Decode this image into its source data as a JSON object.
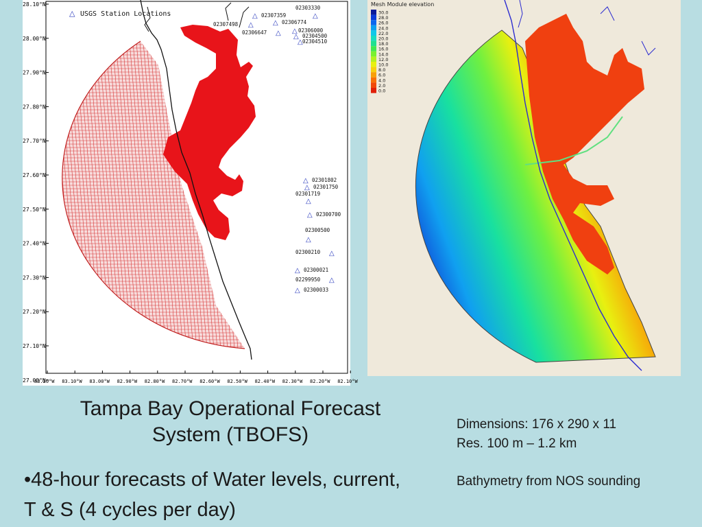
{
  "left_figure": {
    "legend_label": "USGS Station Locations",
    "y_ticks": [
      "28.10°N",
      "28.00°N",
      "27.90°N",
      "27.80°N",
      "27.70°N",
      "27.60°N",
      "27.50°N",
      "27.40°N",
      "27.30°N",
      "27.20°N",
      "27.10°N",
      "27.00°N"
    ],
    "x_ticks": [
      "83.20°W",
      "83.10°W",
      "83.00°W",
      "82.90°W",
      "82.80°W",
      "82.70°W",
      "82.60°W",
      "82.50°W",
      "82.40°W",
      "82.30°W",
      "82.20°W",
      "82.10°W"
    ],
    "stations": [
      "02303330",
      "02307359",
      "02306774",
      "02307498",
      "02306647",
      "02306000",
      "02304500",
      "02304510",
      "02301802",
      "02301750",
      "02301719",
      "02300700",
      "02300500",
      "02300210",
      "02300021",
      "02299950",
      "02300033"
    ]
  },
  "right_figure": {
    "legend_title": "Mesh Module elevation",
    "legend_values": [
      "30.0",
      "28.0",
      "26.0",
      "24.0",
      "22.0",
      "20.0",
      "18.0",
      "16.0",
      "14.0",
      "12.0",
      "10.0",
      "8.0",
      "6.0",
      "4.0",
      "2.0",
      "0.0"
    ],
    "legend_colors": [
      "#0a1a9a",
      "#0a3ad8",
      "#0a66ee",
      "#0aa0f0",
      "#10c8e8",
      "#18dcc0",
      "#20e090",
      "#40e850",
      "#7af030",
      "#b4f020",
      "#e8f010",
      "#f8d010",
      "#f8a008",
      "#f87008",
      "#f04808",
      "#e02008"
    ]
  },
  "title": "Tampa Bay Operational Forecast System (TBOFS)",
  "bullet": "•48-hour forecasts of Water levels, current, T & S (4 cycles per day)",
  "specs": {
    "dimensions": "Dimensions: 176 x 290 x 11",
    "resolution": "Res. 100 m – 1.2 km",
    "bathymetry": "Bathymetry from NOS sounding"
  }
}
